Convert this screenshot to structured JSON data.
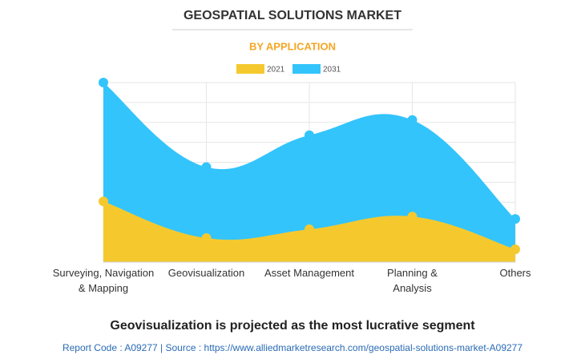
{
  "chart_data": {
    "type": "area",
    "title": "GEOSPATIAL SOLUTIONS MARKET",
    "subtitle": "BY APPLICATION",
    "categories": [
      "Surveying, Navigation\n& Mapping",
      "Geovisualization",
      "Asset Management",
      "Planning &\nAnalysis",
      "Others"
    ],
    "series": [
      {
        "name": "2021",
        "color": "#f5c92e",
        "values": [
          3.04,
          1.2,
          1.64,
          2.28,
          0.64
        ]
      },
      {
        "name": "2031",
        "color": "#33c4fc",
        "values": [
          9.0,
          4.76,
          6.36,
          7.12,
          2.16
        ]
      }
    ],
    "ylim": [
      0,
      9
    ],
    "yticks": [
      0,
      1,
      2,
      3,
      4,
      5,
      6,
      7,
      8,
      9
    ],
    "grid": true,
    "annotation": "Geovisualization is projected as the most lucrative segment",
    "source": "Report Code : A09277  |  Source : https://www.alliedmarketresearch.com/geospatial-solutions-market-A09277"
  }
}
